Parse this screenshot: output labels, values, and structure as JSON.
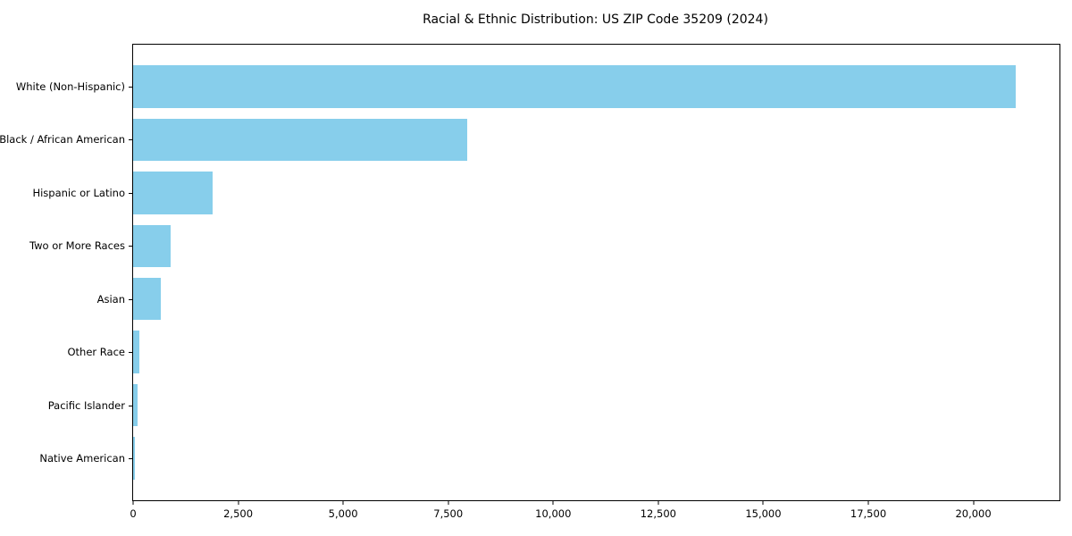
{
  "chart_data": {
    "type": "bar",
    "orientation": "horizontal",
    "title": "Racial & Ethnic Distribution: US ZIP Code 35209 (2024)",
    "categories": [
      "White (Non-Hispanic)",
      "Black / African American",
      "Hispanic or Latino",
      "Two or More Races",
      "Asian",
      "Other Race",
      "Pacific Islander",
      "Native American"
    ],
    "values": [
      21000,
      7950,
      1900,
      900,
      650,
      140,
      115,
      50
    ],
    "bar_color": "#87CEEB",
    "xlabel": "",
    "ylabel": "",
    "xlim": [
      0,
      22050
    ],
    "x_ticks": [
      0,
      2500,
      5000,
      7500,
      10000,
      12500,
      15000,
      17500,
      20000
    ],
    "x_tick_labels": [
      "0",
      "2,500",
      "5,000",
      "7,500",
      "10,000",
      "12,500",
      "15,000",
      "17,500",
      "20,000"
    ],
    "grid": false,
    "legend": "none"
  }
}
